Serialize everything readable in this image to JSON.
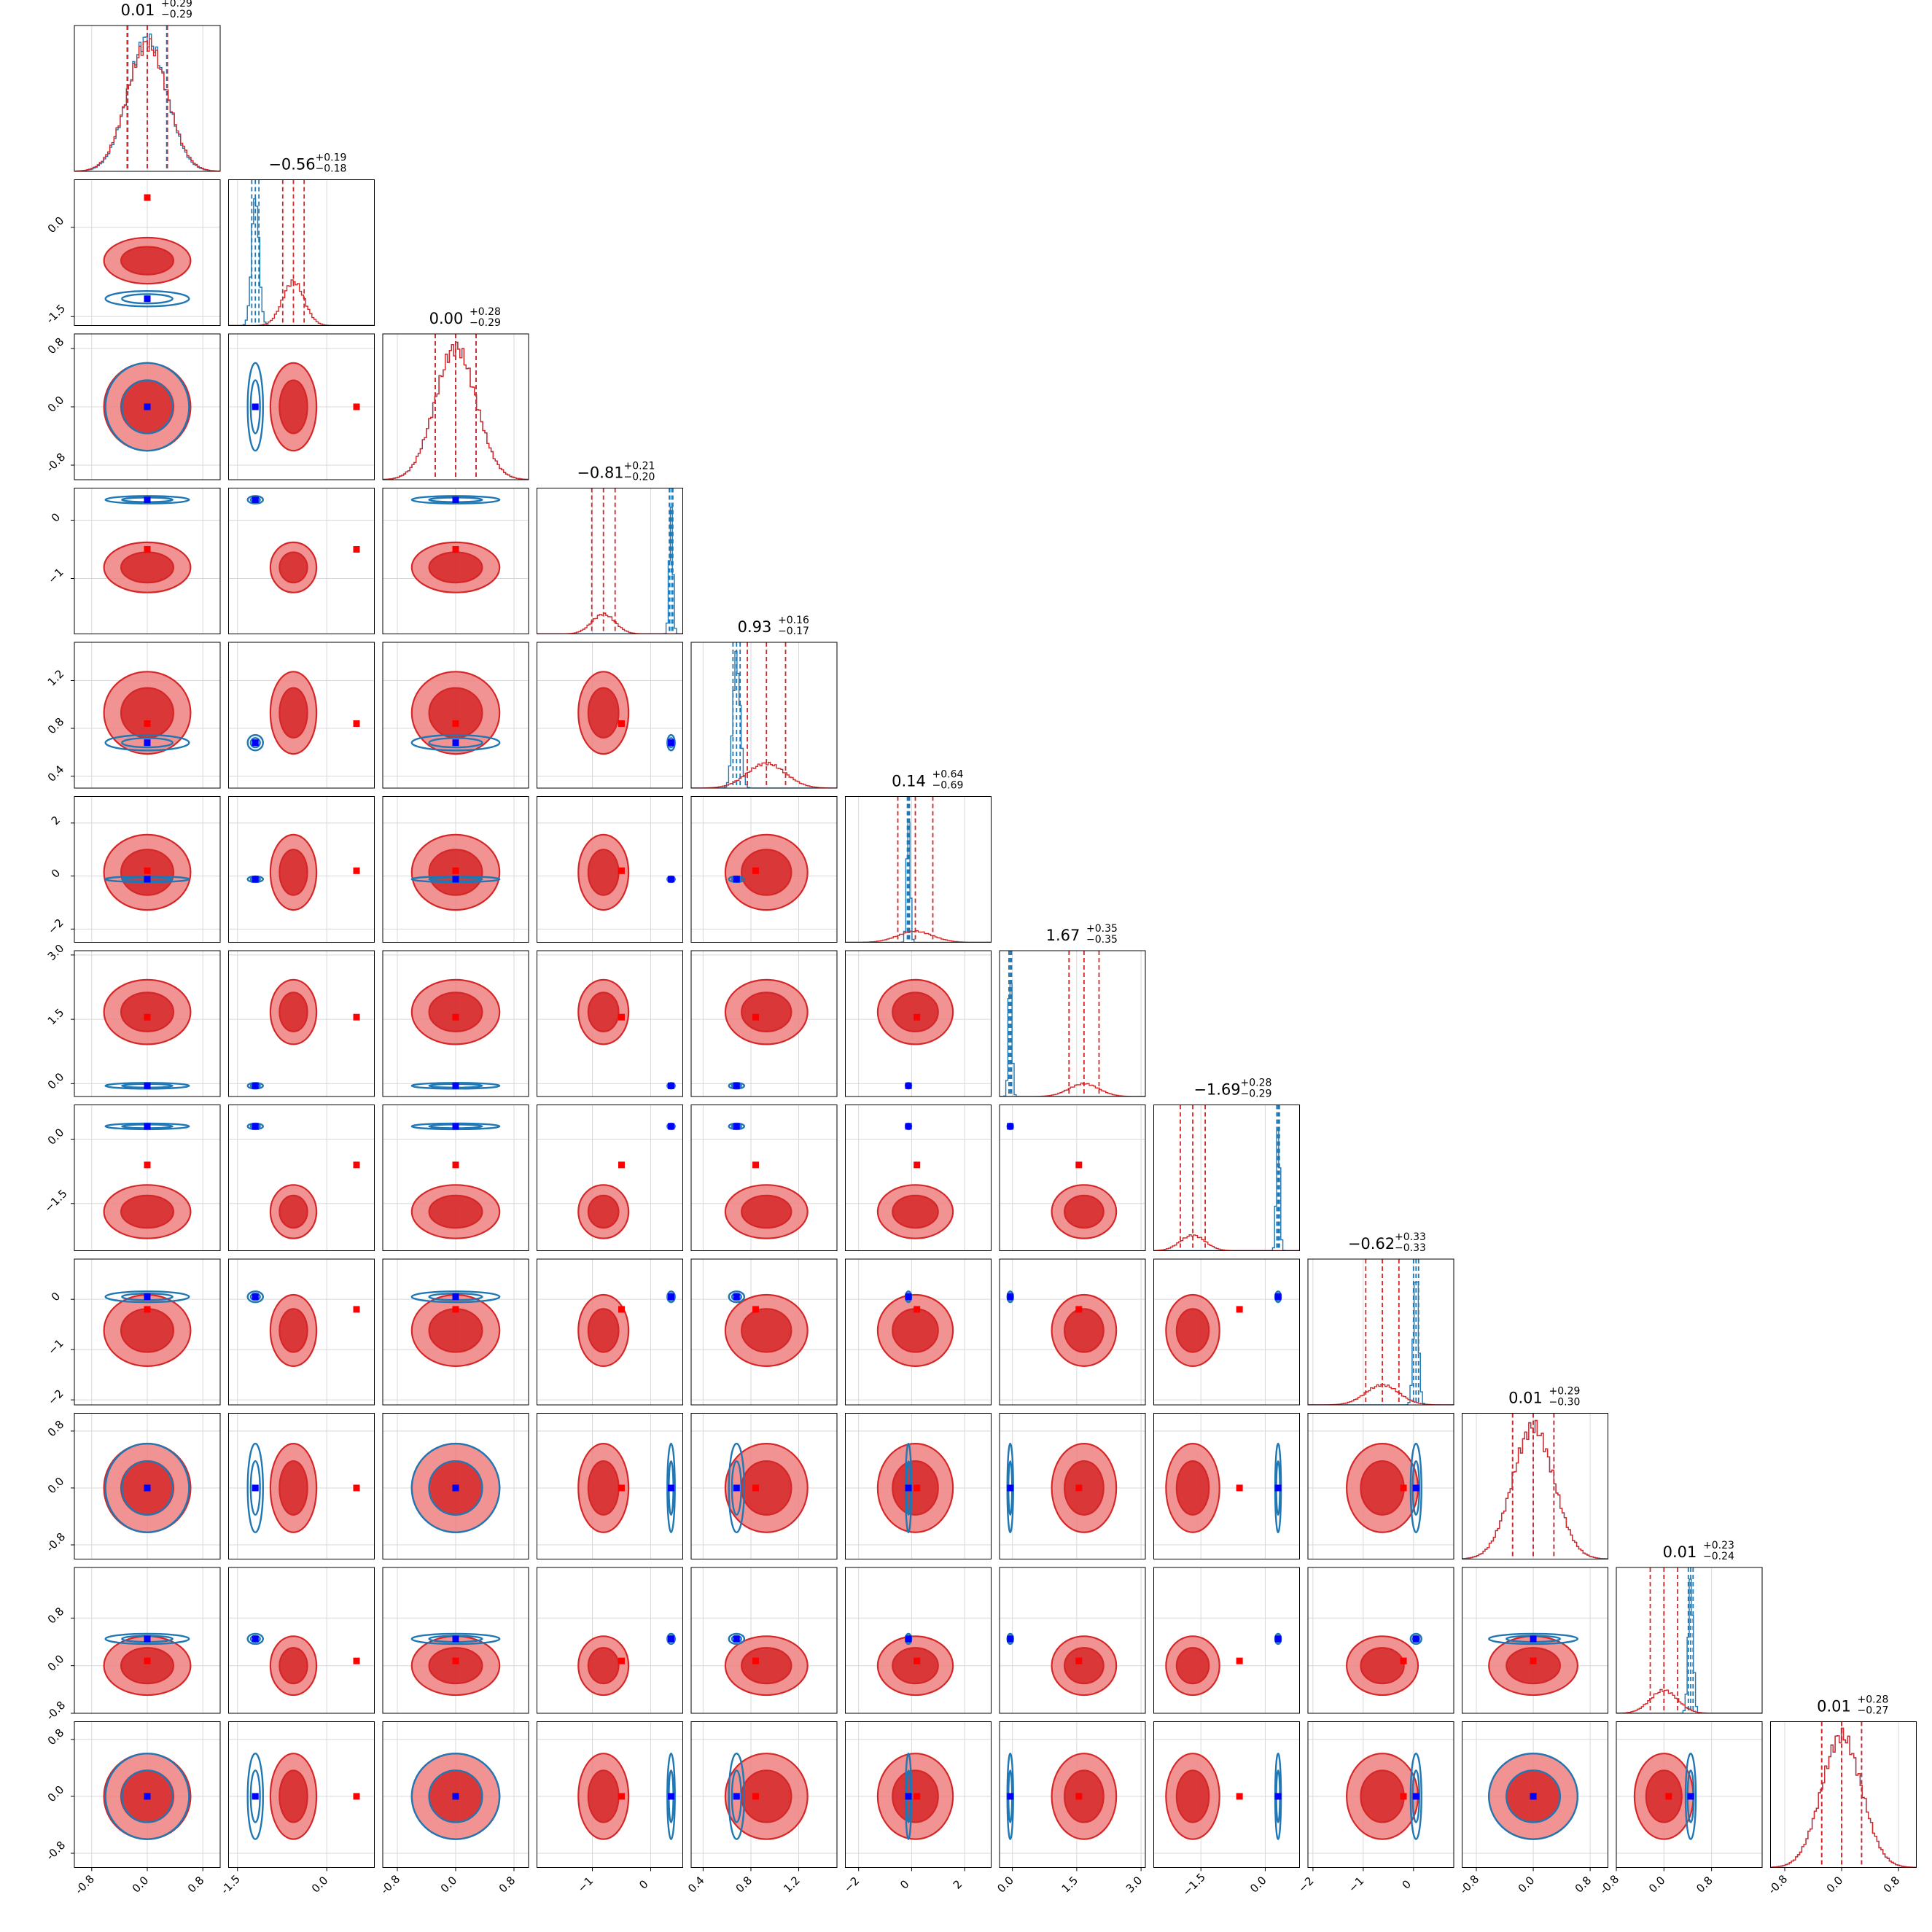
{
  "chart_data": {
    "type": "corner",
    "n_params": 12,
    "grid": true,
    "colors": {
      "blue": "#1f77b4",
      "blue_marker": "#0000ff",
      "red": "#d62728",
      "red_fill": "#f08080",
      "red_marker": "#ff0000"
    },
    "params": [
      {
        "range": [
          -1.05,
          1.05
        ],
        "ticks": [
          -0.8,
          0.0,
          0.8
        ],
        "tick_labels": [
          "-0.8",
          "0.0",
          "0.8"
        ],
        "median": 0.01,
        "plus": "0.29",
        "minus": "0.29",
        "red": {
          "mu": 0.0,
          "sd": 0.29
        },
        "blue": {
          "mu": 0.0,
          "sd": 0.28
        },
        "red_marker": 0.0,
        "blue_marker": 0.0
      },
      {
        "range": [
          -1.65,
          0.8
        ],
        "ticks": [
          -1.5,
          0.0
        ],
        "tick_labels": [
          "-1.5",
          "0.0"
        ],
        "median": -0.56,
        "plus": "0.19",
        "minus": "0.18",
        "red": {
          "mu": -0.56,
          "sd": 0.18
        },
        "blue": {
          "mu": -1.2,
          "sd": 0.06
        },
        "red_marker": 0.5,
        "blue_marker": -1.2
      },
      {
        "range": [
          -1.0,
          1.0
        ],
        "ticks": [
          -0.8,
          0.0,
          0.8
        ],
        "tick_labels": [
          "-0.8",
          "0.0",
          "0.8"
        ],
        "median": -0.0,
        "plus": "0.28",
        "minus": "0.29",
        "red": {
          "mu": 0.0,
          "sd": 0.28
        },
        "blue": {
          "mu": 0.0,
          "sd": 0.28
        },
        "red_marker": 0.0,
        "blue_marker": 0.0
      },
      {
        "range": [
          -1.95,
          0.55
        ],
        "ticks": [
          -1,
          0
        ],
        "tick_labels": [
          "−1",
          "0"
        ],
        "median": -0.81,
        "plus": "0.21",
        "minus": "0.20",
        "red": {
          "mu": -0.81,
          "sd": 0.2
        },
        "blue": {
          "mu": 0.35,
          "sd": 0.03
        },
        "red_marker": -0.5,
        "blue_marker": 0.35
      },
      {
        "range": [
          0.3,
          1.52
        ],
        "ticks": [
          0.4,
          0.8,
          1.2
        ],
        "tick_labels": [
          "0.4",
          "0.8",
          "1.2"
        ],
        "median": 0.93,
        "plus": "0.16",
        "minus": "0.17",
        "red": {
          "mu": 0.93,
          "sd": 0.16
        },
        "blue": {
          "mu": 0.68,
          "sd": 0.03
        },
        "red_marker": 0.84,
        "blue_marker": 0.68
      },
      {
        "range": [
          -2.5,
          3.0
        ],
        "ticks": [
          -2,
          0,
          2
        ],
        "tick_labels": [
          "−2",
          "0",
          "2"
        ],
        "median": 0.14,
        "plus": "0.64",
        "minus": "0.69",
        "red": {
          "mu": 0.14,
          "sd": 0.66
        },
        "blue": {
          "mu": -0.12,
          "sd": 0.04
        },
        "red_marker": 0.2,
        "blue_marker": -0.12
      },
      {
        "range": [
          -0.3,
          3.1
        ],
        "ticks": [
          0.0,
          1.5,
          3.0
        ],
        "tick_labels": [
          "0.0",
          "1.5",
          "3.0"
        ],
        "median": 1.67,
        "plus": "0.35",
        "minus": "0.35",
        "red": {
          "mu": 1.67,
          "sd": 0.35
        },
        "blue": {
          "mu": -0.05,
          "sd": 0.03
        },
        "red_marker": 1.55,
        "blue_marker": -0.05
      },
      {
        "range": [
          -2.6,
          0.8
        ],
        "ticks": [
          -1.5,
          0.0
        ],
        "tick_labels": [
          "−1.5",
          "0.0"
        ],
        "median": -1.69,
        "plus": "0.28",
        "minus": "0.29",
        "red": {
          "mu": -1.69,
          "sd": 0.29
        },
        "blue": {
          "mu": 0.3,
          "sd": 0.03
        },
        "red_marker": -0.6,
        "blue_marker": 0.3
      },
      {
        "range": [
          -2.1,
          0.8
        ],
        "ticks": [
          -2,
          -1,
          0
        ],
        "tick_labels": [
          "−2",
          "−1",
          "0"
        ],
        "median": -0.62,
        "plus": "0.33",
        "minus": "0.33",
        "red": {
          "mu": -0.62,
          "sd": 0.33
        },
        "blue": {
          "mu": 0.05,
          "sd": 0.05
        },
        "red_marker": -0.2,
        "blue_marker": 0.05
      },
      {
        "range": [
          -1.0,
          1.05
        ],
        "ticks": [
          -0.8,
          0.0,
          0.8
        ],
        "tick_labels": [
          "-0.8",
          "0.0",
          "0.8"
        ],
        "median": 0.01,
        "plus": "0.29",
        "minus": "0.30",
        "red": {
          "mu": 0.0,
          "sd": 0.29
        },
        "blue": {
          "mu": 0.0,
          "sd": 0.29
        },
        "red_marker": 0.0,
        "blue_marker": 0.0
      },
      {
        "range": [
          -0.8,
          1.65
        ],
        "ticks": [
          -0.8,
          0.0,
          0.8
        ],
        "tick_labels": [
          "-0.8",
          "0.0",
          "0.8"
        ],
        "median": 0.01,
        "plus": "0.23",
        "minus": "0.24",
        "red": {
          "mu": 0.0,
          "sd": 0.23
        },
        "blue": {
          "mu": 0.45,
          "sd": 0.04
        },
        "red_marker": 0.08,
        "blue_marker": 0.45
      },
      {
        "range": [
          -1.0,
          1.05
        ],
        "ticks": [
          -0.8,
          0.0,
          0.8
        ],
        "tick_labels": [
          "-0.8",
          "0.0",
          "0.8"
        ],
        "median": 0.01,
        "plus": "0.28",
        "minus": "0.27",
        "red": {
          "mu": 0.0,
          "sd": 0.28
        },
        "blue": {
          "mu": 0.0,
          "sd": 0.28
        },
        "red_marker": 0.0,
        "blue_marker": 0.0
      }
    ]
  }
}
